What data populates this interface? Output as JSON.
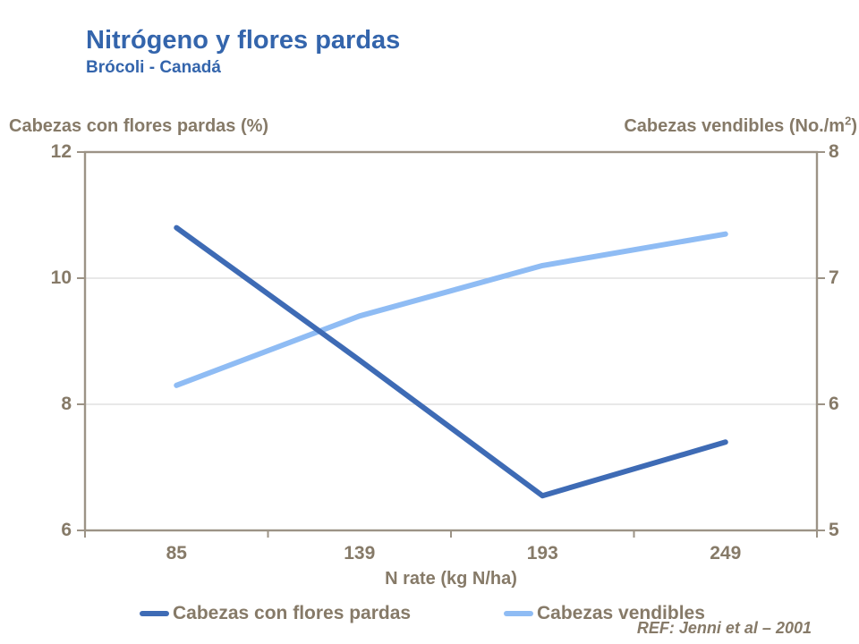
{
  "slide": {
    "title": "Nitrógeno y flores pardas",
    "subtitle": "Brócoli - Canadá",
    "reference": "REF: Jenni et al – 2001"
  },
  "colors": {
    "title_blue": "#3465AC",
    "series_dark_blue": "#3E6BB5",
    "series_light_blue": "#8FBCF4",
    "axis_text_tan": "#867A68",
    "axis_line_tan": "#9C9386",
    "gridline_gray": "#D9D9D9",
    "background": "#FFFFFF"
  },
  "chart_data": {
    "type": "line",
    "title": "Nitrógeno y flores pardas",
    "subtitle": "Brócoli - Canadá",
    "categories": [
      "85",
      "139",
      "193",
      "249"
    ],
    "xlabel": "N rate (kg N/ha)",
    "left_axis": {
      "title": "Cabezas con flores pardas (%)",
      "range": [
        6,
        12
      ],
      "ticks": [
        12,
        10,
        8,
        6
      ]
    },
    "right_axis": {
      "title_main": "Cabezas vendibles (No./m",
      "title_sup": "2",
      "title_end": ")",
      "range": [
        5,
        8
      ],
      "ticks": [
        8,
        7,
        6,
        5
      ]
    },
    "series": [
      {
        "name": "Cabezas con flores pardas",
        "axis": "left",
        "color": "#3E6BB5",
        "values": [
          10.8,
          8.7,
          6.55,
          7.4
        ]
      },
      {
        "name": "Cabezas vendibles",
        "axis": "right",
        "color": "#8FBCF4",
        "values": [
          6.15,
          6.7,
          7.1,
          7.35
        ]
      }
    ],
    "legend": [
      "Cabezas con flores pardas",
      "Cabezas vendibles"
    ],
    "legend_position": "bottom",
    "grid": "horizontal gridlines at left-axis 8 and 10 (right-axis 6 and 7)"
  }
}
